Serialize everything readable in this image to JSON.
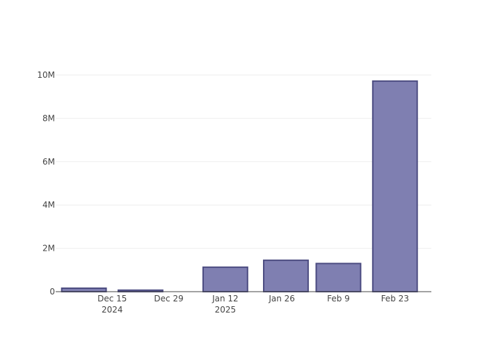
{
  "chart_data": {
    "type": "bar",
    "x": [
      "2024-12-08",
      "2024-12-22",
      "2025-01-12",
      "2025-01-27",
      "2025-02-09",
      "2025-02-23"
    ],
    "values": [
      160000,
      70000,
      1130000,
      1450000,
      1300000,
      9720000
    ],
    "x_ticks": [
      {
        "date": "2024-12-15",
        "label": "Dec 15",
        "sublabel": "2024"
      },
      {
        "date": "2024-12-29",
        "label": "Dec 29",
        "sublabel": ""
      },
      {
        "date": "2025-01-12",
        "label": "Jan 12",
        "sublabel": "2025"
      },
      {
        "date": "2025-01-26",
        "label": "Jan 26",
        "sublabel": ""
      },
      {
        "date": "2025-02-09",
        "label": "Feb 9",
        "sublabel": ""
      },
      {
        "date": "2025-02-23",
        "label": "Feb 23",
        "sublabel": ""
      }
    ],
    "y_ticks": [
      {
        "value": 0,
        "label": "0"
      },
      {
        "value": 2000000,
        "label": "2M"
      },
      {
        "value": 4000000,
        "label": "4M"
      },
      {
        "value": 6000000,
        "label": "6M"
      },
      {
        "value": 8000000,
        "label": "8M"
      },
      {
        "value": 10000000,
        "label": "10M"
      }
    ],
    "ylim": [
      0,
      10000000
    ],
    "xlim": [
      "2024-12-01",
      "2025-03-04"
    ],
    "grid": true,
    "colors": {
      "bar_fill": "#7f7fb1",
      "bar_stroke": "#4b4b80",
      "grid": "#eeeeee",
      "axis": "#444444"
    }
  }
}
